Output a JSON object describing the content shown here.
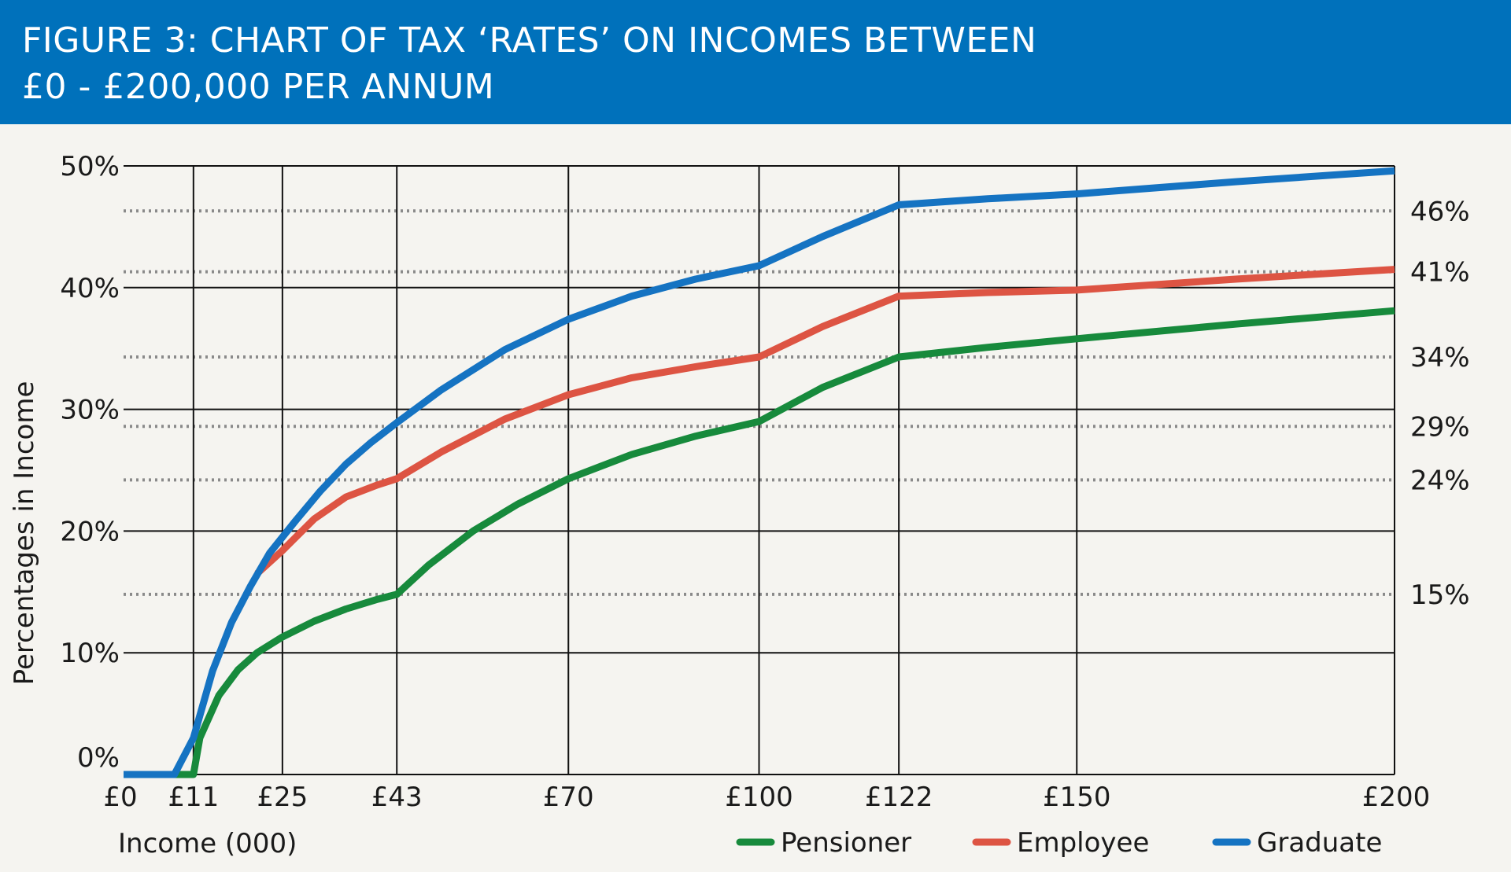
{
  "title": {
    "line1": "FIGURE 3: CHART OF TAX ‘RATES’ ON INCOMES BETWEEN",
    "line2": "£0 - £200,000 PER ANNUM"
  },
  "colors": {
    "header": "#0071bb",
    "background": "#f5f4f0",
    "pensioner": "#178a3c",
    "employee": "#dd5443",
    "graduate": "#1573c2",
    "grid": "#111111",
    "dotted": "#8a8a8a"
  },
  "chart_data": {
    "type": "line",
    "xlabel": "Income (000)",
    "ylabel": "Percentages in Income",
    "xlim": [
      0,
      200
    ],
    "ylim": [
      0,
      50
    ],
    "x_ticks": [
      {
        "value": 0,
        "label": "£0"
      },
      {
        "value": 11,
        "label": "£11"
      },
      {
        "value": 25,
        "label": "£25"
      },
      {
        "value": 43,
        "label": "£43"
      },
      {
        "value": 70,
        "label": "£70"
      },
      {
        "value": 100,
        "label": "£100"
      },
      {
        "value": 122,
        "label": "£122"
      },
      {
        "value": 150,
        "label": "£150"
      },
      {
        "value": 200,
        "label": "£200"
      }
    ],
    "y_ticks": [
      {
        "value": 0,
        "label": "0%"
      },
      {
        "value": 10,
        "label": "10%"
      },
      {
        "value": 20,
        "label": "20%"
      },
      {
        "value": 30,
        "label": "30%"
      },
      {
        "value": 40,
        "label": "40%"
      },
      {
        "value": 50,
        "label": "50%"
      }
    ],
    "reference_lines": [
      {
        "value": 46.3,
        "label": "46%"
      },
      {
        "value": 41.3,
        "label": "41%"
      },
      {
        "value": 34.3,
        "label": "34%"
      },
      {
        "value": 28.6,
        "label": "29%"
      },
      {
        "value": 24.2,
        "label": "24%"
      },
      {
        "value": 14.8,
        "label": "15%"
      }
    ],
    "grid": true,
    "legend_position": "bottom-right",
    "series": [
      {
        "name": "Pensioner",
        "color": "#178a3c",
        "points": [
          [
            0,
            0
          ],
          [
            11,
            0
          ],
          [
            12,
            3
          ],
          [
            15,
            6.5
          ],
          [
            18,
            8.6
          ],
          [
            21,
            10
          ],
          [
            25,
            11.3
          ],
          [
            30,
            12.6
          ],
          [
            35,
            13.6
          ],
          [
            40,
            14.4
          ],
          [
            43,
            14.8
          ],
          [
            48,
            17.2
          ],
          [
            55,
            20
          ],
          [
            62,
            22.2
          ],
          [
            70,
            24.3
          ],
          [
            80,
            26.3
          ],
          [
            90,
            27.8
          ],
          [
            100,
            29
          ],
          [
            110,
            31.8
          ],
          [
            122,
            34.3
          ],
          [
            136,
            35.1
          ],
          [
            150,
            35.8
          ],
          [
            175,
            37
          ],
          [
            200,
            38.1
          ]
        ]
      },
      {
        "name": "Employee",
        "color": "#dd5443",
        "points": [
          [
            21,
            16.5
          ],
          [
            25,
            18.4
          ],
          [
            30,
            21
          ],
          [
            35,
            22.8
          ],
          [
            40,
            23.8
          ],
          [
            43,
            24.3
          ],
          [
            50,
            26.5
          ],
          [
            60,
            29.2
          ],
          [
            70,
            31.2
          ],
          [
            80,
            32.6
          ],
          [
            90,
            33.5
          ],
          [
            100,
            34.3
          ],
          [
            110,
            36.8
          ],
          [
            122,
            39.3
          ],
          [
            136,
            39.6
          ],
          [
            150,
            39.8
          ],
          [
            175,
            40.7
          ],
          [
            200,
            41.5
          ]
        ]
      },
      {
        "name": "Graduate",
        "color": "#1573c2",
        "points": [
          [
            0,
            0
          ],
          [
            8,
            0
          ],
          [
            11,
            3
          ],
          [
            14,
            8.5
          ],
          [
            17,
            12.5
          ],
          [
            20,
            15.5
          ],
          [
            23,
            18.2
          ],
          [
            27,
            20.8
          ],
          [
            31,
            23.3
          ],
          [
            35,
            25.5
          ],
          [
            39,
            27.3
          ],
          [
            43,
            28.9
          ],
          [
            50,
            31.6
          ],
          [
            60,
            34.9
          ],
          [
            70,
            37.4
          ],
          [
            80,
            39.3
          ],
          [
            90,
            40.7
          ],
          [
            100,
            41.8
          ],
          [
            110,
            44.2
          ],
          [
            122,
            46.8
          ],
          [
            136,
            47.3
          ],
          [
            150,
            47.7
          ],
          [
            175,
            48.7
          ],
          [
            200,
            49.6
          ]
        ]
      }
    ]
  }
}
